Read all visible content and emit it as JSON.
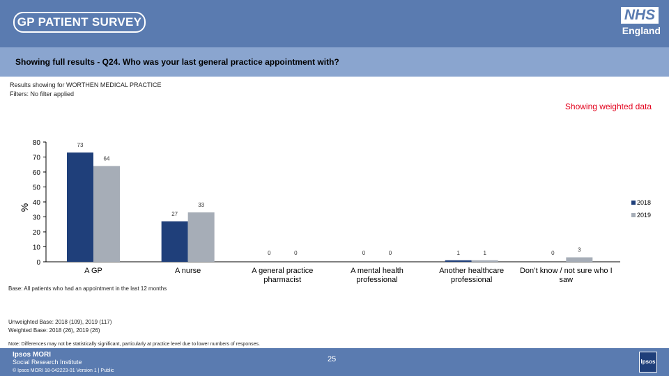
{
  "header": {
    "survey_logo": "GP PATIENT SURVEY",
    "nhs_logo": "NHS",
    "nhs_region": "England"
  },
  "question": "Showing full results - Q24.  Who was your last general practice appointment with?",
  "results_for": "Results showing for WORTHEN MEDICAL PRACTICE",
  "filters": "Filters: No filter applied",
  "weighted_note": "Showing weighted data",
  "base": "Base: All patients who had an appointment in the last 12 months",
  "unweighted_base": "Unweighted Base: 2018 (109), 2019 (117)",
  "weighted_base": "Weighted Base: 2018 (26), 2019 (26)",
  "note": "Note: Differences may not be statistically significant, particularly at practice level due to lower numbers of responses.",
  "footer": {
    "company": "Ipsos MORI",
    "institute": "Social Research Institute",
    "tagline": "© Ipsos MORI       18-042223-01 Version 1 | Public",
    "page_number": "25",
    "logo_text": "Ipsos"
  },
  "colors": {
    "header": "#5a7bb0",
    "question_band": "#8aa5cf",
    "series_2018": "#1f3f7a",
    "series_2019": "#a6adb7",
    "weighted_note": "#e3001b"
  },
  "chart_data": {
    "type": "bar",
    "title": "",
    "xlabel": "",
    "ylabel": "%",
    "ylim": [
      0,
      80
    ],
    "yticks": [
      0,
      10,
      20,
      30,
      40,
      50,
      60,
      70,
      80
    ],
    "grid": false,
    "legend_position": "right",
    "categories": [
      "A GP",
      "A nurse",
      "A general practice pharmacist",
      "A mental health professional",
      "Another healthcare professional",
      "Don't know / not sure who I saw"
    ],
    "category_lines": [
      [
        "A GP"
      ],
      [
        "A nurse"
      ],
      [
        "A general practice",
        "pharmacist"
      ],
      [
        "A mental health",
        "professional"
      ],
      [
        "Another healthcare",
        "professional"
      ],
      [
        "Don’t know / not sure who I",
        "saw"
      ]
    ],
    "series": [
      {
        "name": "2018",
        "values": [
          73,
          27,
          0,
          0,
          1,
          0
        ],
        "labels": [
          "73",
          "27",
          "0",
          "0",
          "1",
          "0"
        ]
      },
      {
        "name": "2019",
        "values": [
          64,
          33,
          0,
          0,
          1,
          3
        ],
        "labels": [
          "64",
          "33",
          "0",
          "0",
          "1",
          "3"
        ]
      }
    ]
  }
}
